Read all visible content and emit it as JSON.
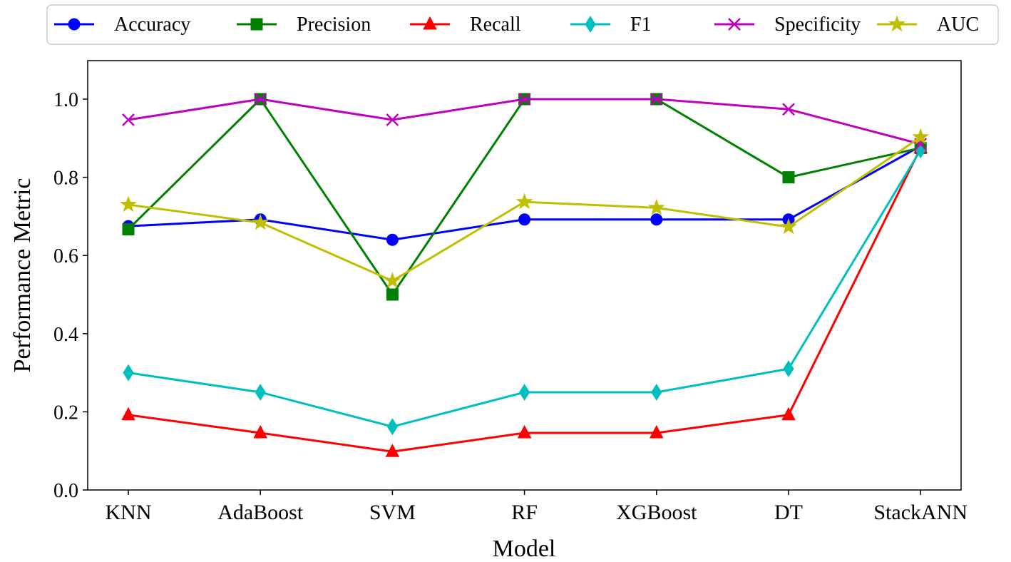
{
  "chart_data": {
    "type": "line",
    "title": "",
    "xlabel": "Model",
    "ylabel": "Performance Metric",
    "categories": [
      "KNN",
      "AdaBoost",
      "SVM",
      "RF",
      "XGBoost",
      "DT",
      "StackANN"
    ],
    "ylim": [
      0,
      1.1
    ],
    "yticks": [
      "0.0",
      "0.2",
      "0.4",
      "0.6",
      "0.8",
      "1.0"
    ],
    "grid": false,
    "legend_position": "top",
    "series": [
      {
        "name": "Accuracy",
        "color": "#0000ff",
        "marker": "circle",
        "values": [
          0.675,
          0.692,
          0.64,
          0.692,
          0.692,
          0.692,
          0.88
        ]
      },
      {
        "name": "Precision",
        "color": "#008000",
        "marker": "square",
        "values": [
          0.667,
          1.0,
          0.5,
          1.0,
          1.0,
          0.8,
          0.875
        ]
      },
      {
        "name": "Recall",
        "color": "#ff0000",
        "marker": "triangle",
        "values": [
          0.192,
          0.146,
          0.098,
          0.146,
          0.146,
          0.192,
          0.875
        ]
      },
      {
        "name": "F1",
        "color": "#00bfbf",
        "marker": "diamond",
        "values": [
          0.3,
          0.25,
          0.162,
          0.25,
          0.25,
          0.31,
          0.87
        ]
      },
      {
        "name": "Specificity",
        "color": "#bf00bf",
        "marker": "x",
        "values": [
          0.947,
          1.0,
          0.947,
          1.0,
          1.0,
          0.974,
          0.885
        ]
      },
      {
        "name": "AUC",
        "color": "#bfbf00",
        "marker": "star",
        "values": [
          0.73,
          0.684,
          0.535,
          0.737,
          0.722,
          0.673,
          0.903
        ]
      }
    ]
  }
}
